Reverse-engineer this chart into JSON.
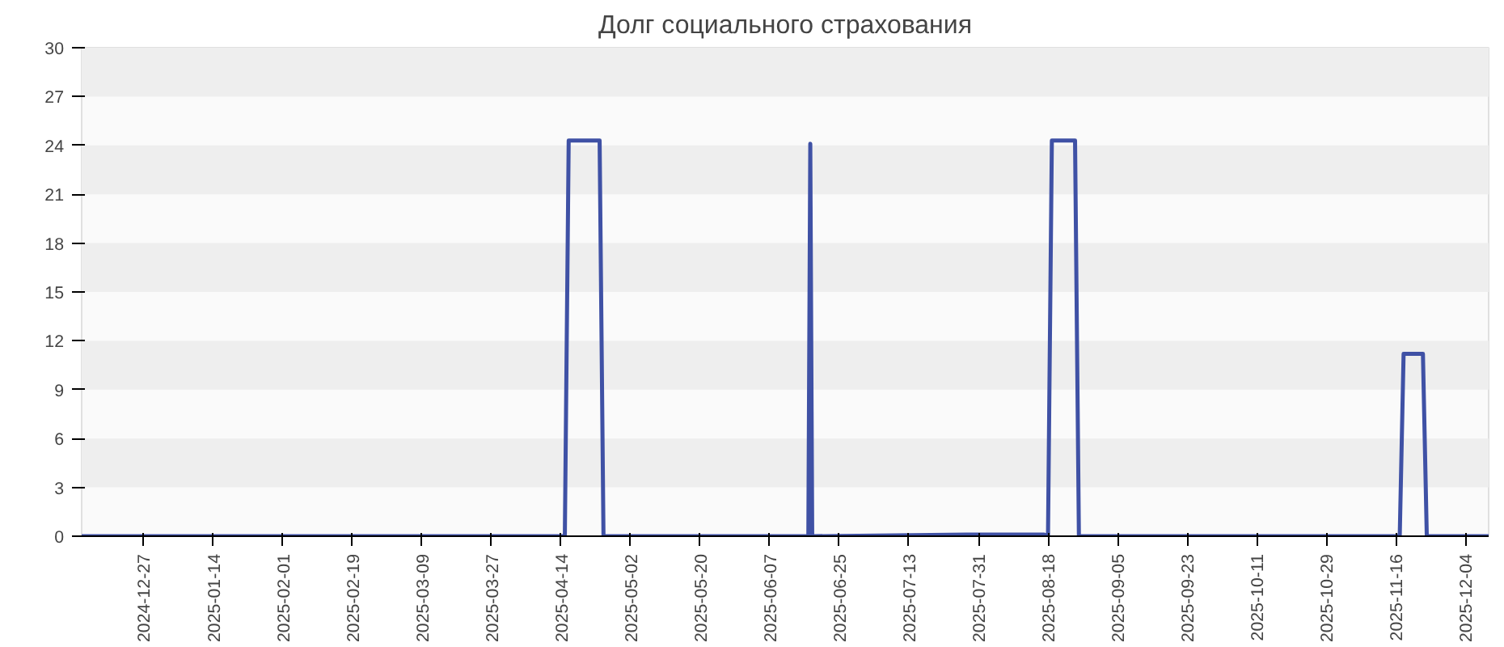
{
  "chart_data": {
    "type": "line",
    "title": "Долг социального страхования",
    "x": [
      "2024-12-11",
      "2025-04-15",
      "2025-04-16",
      "2025-04-24",
      "2025-04-25",
      "2025-06-17",
      "2025-06-17T12:00",
      "2025-06-18",
      "2025-07-28",
      "2025-08-17",
      "2025-08-18",
      "2025-08-19",
      "2025-08-25",
      "2025-08-26",
      "2025-11-17",
      "2025-11-18",
      "2025-11-23",
      "2025-11-24",
      "2025-12-10"
    ],
    "series": [
      {
        "color": "#3f51a5",
        "values": [
          0,
          0,
          24.3,
          24.3,
          0,
          0,
          24.1,
          0,
          0.1,
          0.1,
          0,
          24.3,
          24.3,
          0,
          0,
          11.2,
          11.2,
          0,
          0
        ]
      }
    ],
    "xlim": [
      "2024-12-11",
      "2025-12-10"
    ],
    "xticks": [
      "2024-12-27",
      "2025-01-14",
      "2025-02-01",
      "2025-02-19",
      "2025-03-09",
      "2025-03-27",
      "2025-04-14",
      "2025-05-02",
      "2025-05-20",
      "2025-06-07",
      "2025-06-25",
      "2025-07-13",
      "2025-07-31",
      "2025-08-18",
      "2025-09-05",
      "2025-09-23",
      "2025-10-11",
      "2025-10-29",
      "2025-11-16",
      "2025-12-04"
    ],
    "ylim": [
      0,
      30
    ],
    "yticks": [
      0,
      3,
      6,
      9,
      12,
      15,
      18,
      21,
      24,
      27,
      30
    ],
    "marker": "none",
    "line_style": "solid"
  }
}
